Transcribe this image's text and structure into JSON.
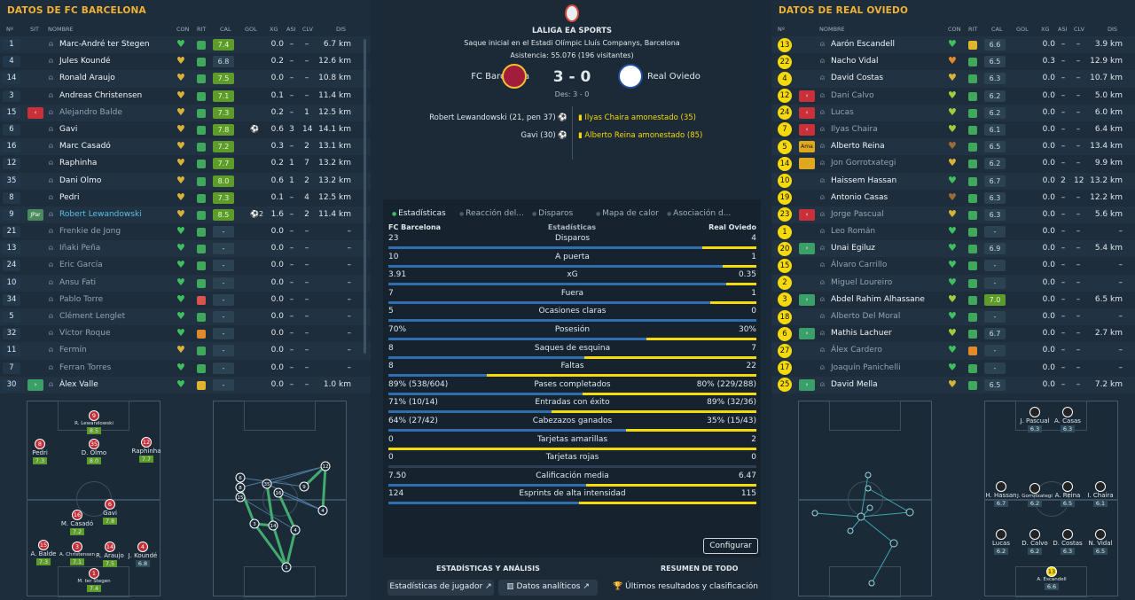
{
  "left": {
    "title": "DATOS DE FC BARCELONA",
    "headers": {
      "no": "Nº",
      "sit": "SIT",
      "name": "NOMBRE",
      "con": "CON",
      "rit": "RIT",
      "cal": "CAL",
      "gol": "GOL",
      "xg": "XG",
      "asi": "ASI",
      "clv": "CLV",
      "dis": "DIS"
    },
    "players": [
      {
        "n": "1",
        "sit": "",
        "name": "Marc-André ter Stegen",
        "con": "green",
        "rit": "#3fa85a",
        "cal": "7.4",
        "calg": true,
        "gol": "",
        "xg": "0.0",
        "asi": "–",
        "clv": "–",
        "dis": "6.7 km"
      },
      {
        "n": "4",
        "sit": "",
        "name": "Jules Koundé",
        "con": "gold",
        "rit": "#3fa85a",
        "cal": "6.8",
        "calg": false,
        "gol": "",
        "xg": "0.2",
        "asi": "–",
        "clv": "–",
        "dis": "12.6 km"
      },
      {
        "n": "14",
        "sit": "",
        "name": "Ronald Araujo",
        "con": "gold",
        "rit": "#3fa85a",
        "cal": "7.5",
        "calg": true,
        "gol": "",
        "xg": "0.0",
        "asi": "–",
        "clv": "–",
        "dis": "10.8 km"
      },
      {
        "n": "3",
        "sit": "",
        "name": "Andreas Christensen",
        "con": "gold",
        "rit": "#3fa85a",
        "cal": "7.1",
        "calg": true,
        "gol": "",
        "xg": "0.1",
        "asi": "–",
        "clv": "–",
        "dis": "11.4 km"
      },
      {
        "n": "15",
        "sit": "red",
        "sitt": "‹",
        "name": "Alejandro Balde",
        "con": "gold",
        "rit": "#3fa85a",
        "cal": "7.3",
        "calg": true,
        "gol": "",
        "xg": "0.2",
        "asi": "–",
        "clv": "1",
        "dis": "12.5 km",
        "muted": true
      },
      {
        "n": "6",
        "sit": "",
        "name": "Gavi",
        "con": "gold",
        "rit": "#3fa85a",
        "cal": "7.8",
        "calg": true,
        "gol": "⚽",
        "xg": "0.6",
        "asi": "3",
        "clv": "14",
        "dis": "14.1 km"
      },
      {
        "n": "16",
        "sit": "",
        "name": "Marc Casadó",
        "con": "gold",
        "rit": "#3fa85a",
        "cal": "7.2",
        "calg": true,
        "gol": "",
        "xg": "0.3",
        "asi": "–",
        "clv": "2",
        "dis": "13.1 km"
      },
      {
        "n": "12",
        "sit": "",
        "name": "Raphinha",
        "con": "gold",
        "rit": "#3fa85a",
        "cal": "7.7",
        "calg": true,
        "gol": "",
        "xg": "0.2",
        "asi": "1",
        "clv": "7",
        "dis": "13.2 km"
      },
      {
        "n": "35",
        "sit": "",
        "name": "Dani Olmo",
        "con": "gold",
        "rit": "#3fa85a",
        "cal": "8.0",
        "calg": true,
        "gol": "",
        "xg": "0.6",
        "asi": "1",
        "clv": "2",
        "dis": "13.2 km"
      },
      {
        "n": "8",
        "sit": "",
        "name": "Pedri",
        "con": "gold",
        "rit": "#3fa85a",
        "cal": "7.3",
        "calg": true,
        "gol": "",
        "xg": "0.1",
        "asi": "–",
        "clv": "4",
        "dis": "12.5 km"
      },
      {
        "n": "9",
        "sit": "jpar",
        "sitt": "JPar",
        "name": "Robert Lewandowski",
        "con": "gold",
        "rit": "#3fa85a",
        "cal": "8.5",
        "calg": true,
        "gol": "⚽2",
        "xg": "1.6",
        "asi": "–",
        "clv": "2",
        "dis": "11.4 km",
        "hl": true
      },
      {
        "n": "21",
        "sit": "",
        "name": "Frenkie de Jong",
        "con": "green",
        "rit": "#3fa85a",
        "cal": "-",
        "calg": false,
        "gol": "",
        "xg": "0.0",
        "asi": "–",
        "clv": "–",
        "dis": "–",
        "muted": true
      },
      {
        "n": "13",
        "sit": "",
        "name": "Iñaki Peña",
        "con": "green",
        "rit": "#3fa85a",
        "cal": "-",
        "calg": false,
        "gol": "",
        "xg": "0.0",
        "asi": "–",
        "clv": "–",
        "dis": "–",
        "muted": true
      },
      {
        "n": "24",
        "sit": "",
        "name": "Eric García",
        "con": "green",
        "rit": "#3fa85a",
        "cal": "-",
        "calg": false,
        "gol": "",
        "xg": "0.0",
        "asi": "–",
        "clv": "–",
        "dis": "–",
        "muted": true
      },
      {
        "n": "10",
        "sit": "",
        "name": "Ansu Fati",
        "con": "green",
        "rit": "#3fa85a",
        "cal": "-",
        "calg": false,
        "gol": "",
        "xg": "0.0",
        "asi": "–",
        "clv": "–",
        "dis": "–",
        "muted": true
      },
      {
        "n": "34",
        "sit": "",
        "name": "Pablo Torre",
        "con": "green",
        "rit": "#d9534f",
        "cal": "-",
        "calg": false,
        "gol": "",
        "xg": "0.0",
        "asi": "–",
        "clv": "–",
        "dis": "–",
        "muted": true
      },
      {
        "n": "5",
        "sit": "",
        "name": "Clément Lenglet",
        "con": "green",
        "rit": "#3fa85a",
        "cal": "-",
        "calg": false,
        "gol": "",
        "xg": "0.0",
        "asi": "–",
        "clv": "–",
        "dis": "–",
        "muted": true
      },
      {
        "n": "32",
        "sit": "",
        "name": "Víctor Roque",
        "con": "green",
        "rit": "#e08a2c",
        "cal": "-",
        "calg": false,
        "gol": "",
        "xg": "0.0",
        "asi": "–",
        "clv": "–",
        "dis": "–",
        "muted": true
      },
      {
        "n": "11",
        "sit": "",
        "name": "Fermín",
        "con": "gold",
        "rit": "#3fa85a",
        "cal": "-",
        "calg": false,
        "gol": "",
        "xg": "0.0",
        "asi": "–",
        "clv": "–",
        "dis": "–",
        "muted": true
      },
      {
        "n": "7",
        "sit": "",
        "name": "Ferran Torres",
        "con": "green",
        "rit": "#3fa85a",
        "cal": "-",
        "calg": false,
        "gol": "",
        "xg": "0.0",
        "asi": "–",
        "clv": "–",
        "dis": "–",
        "muted": true
      },
      {
        "n": "30",
        "sit": "green",
        "sitt": "›",
        "name": "Àlex Valle",
        "con": "green",
        "rit": "#e0b52d",
        "cal": "-",
        "calg": false,
        "gol": "",
        "xg": "0.0",
        "asi": "–",
        "clv": "–",
        "dis": "1.0 km"
      }
    ],
    "formation": [
      {
        "n": "9",
        "label": "R. Lewandowski",
        "rating": "8.5",
        "good": true
      },
      {
        "n": "8",
        "label": "Pedri",
        "rating": "7.3",
        "good": true
      },
      {
        "n": "35",
        "label": "D. Olmo",
        "rating": "8.0",
        "good": true
      },
      {
        "n": "12",
        "label": "Raphinha",
        "rating": "7.7",
        "good": true
      },
      {
        "n": "16",
        "label": "M. Casadó",
        "rating": "7.2",
        "good": true
      },
      {
        "n": "6",
        "label": "Gavi",
        "rating": "7.8",
        "good": true
      },
      {
        "n": "15",
        "label": "A. Balde",
        "rating": "7.3",
        "good": true
      },
      {
        "n": "3",
        "label": "A. Christensen",
        "rating": "7.1",
        "good": true
      },
      {
        "n": "14",
        "label": "R. Araujo",
        "rating": "7.5",
        "good": true
      },
      {
        "n": "4",
        "label": "J. Koundé",
        "rating": "6.8",
        "good": false
      },
      {
        "n": "1",
        "label": "M. ter Stegen",
        "rating": "7.4",
        "good": true
      }
    ]
  },
  "center": {
    "competition": "LALIGA EA SPORTS",
    "venue": "Saque inicial en el Estadi Olímpic Lluís Companys, Barcelona",
    "attendance": "Asistencia: 55.076 (196 visitantes)",
    "home": "FC Barcelona",
    "away": "Real Oviedo",
    "score": "3 - 0",
    "halftime": "Des: 3 - 0",
    "home_events": [
      "Robert Lewandowski (21, pen 37)",
      "Gavi (30)"
    ],
    "away_events": [
      "Ilyas Chaira amonestado (35)",
      "Alberto Reina amonestado (85)"
    ],
    "tabs": [
      "Estadísticas",
      "Reacción del...",
      "Disparos",
      "Mapa de calor",
      "Asociación d..."
    ],
    "stats_header": {
      "home": "FC Barcelona",
      "mid": "Estadísticas",
      "away": "Real Oviedo"
    },
    "configure": "Configurar",
    "footer_left": "ESTADÍSTICAS Y ANÁLISIS",
    "footer_right": "RESUMEN DE TODO",
    "buttons": [
      "Estadísticas de jugador",
      "Datos analíticos",
      "Últimos resultados y clasificación"
    ],
    "colors": {
      "home": "#2f6fb0",
      "away": "#f5d90a",
      "accent": "#f2b233"
    }
  },
  "chart_data": {
    "type": "table",
    "rows": [
      {
        "label": "Disparos",
        "home": "23",
        "away": "4",
        "h": 23,
        "a": 4
      },
      {
        "label": "A puerta",
        "home": "10",
        "away": "1",
        "h": 10,
        "a": 1
      },
      {
        "label": "xG",
        "home": "3.91",
        "away": "0.35",
        "h": 3.91,
        "a": 0.35
      },
      {
        "label": "Fuera",
        "home": "7",
        "away": "1",
        "h": 7,
        "a": 1
      },
      {
        "label": "Ocasiones claras",
        "home": "5",
        "away": "0",
        "h": 5,
        "a": 0
      },
      {
        "label": "Posesión",
        "home": "70%",
        "away": "30%",
        "h": 70,
        "a": 30
      },
      {
        "label": "Saques de esquina",
        "home": "8",
        "away": "7",
        "h": 8,
        "a": 7
      },
      {
        "label": "Faltas",
        "home": "8",
        "away": "22",
        "h": 8,
        "a": 22
      },
      {
        "label": "Pases completados",
        "home": "89% (538/604)",
        "away": "80% (229/288)",
        "h": 89,
        "a": 80
      },
      {
        "label": "Entradas con éxito",
        "home": "71% (10/14)",
        "away": "89% (32/36)",
        "h": 71,
        "a": 89
      },
      {
        "label": "Cabezazos ganados",
        "home": "64% (27/42)",
        "away": "35% (15/43)",
        "h": 64,
        "a": 35
      },
      {
        "label": "Tarjetas amarillas",
        "home": "0",
        "away": "2",
        "h": 0,
        "a": 2
      },
      {
        "label": "Tarjetas rojas",
        "home": "0",
        "away": "0",
        "h": 0,
        "a": 0
      },
      {
        "label": "Calificación media",
        "home": "7.50",
        "away": "6.47",
        "h": 7.5,
        "a": 6.47
      },
      {
        "label": "Esprints de alta intensidad",
        "home": "124",
        "away": "115",
        "h": 124,
        "a": 115
      }
    ]
  },
  "right": {
    "title": "DATOS DE REAL OVIEDO",
    "players": [
      {
        "n": "13",
        "sit": "",
        "name": "Aarón Escandell",
        "con": "green",
        "rit": "#e0b52d",
        "cal": "6.6",
        "gol": "",
        "xg": "0.0",
        "asi": "–",
        "clv": "–",
        "dis": "3.9 km"
      },
      {
        "n": "22",
        "sit": "",
        "name": "Nacho Vidal",
        "con": "orange",
        "rit": "#3fa85a",
        "cal": "6.5",
        "gol": "",
        "xg": "0.3",
        "asi": "–",
        "clv": "–",
        "dis": "12.9 km"
      },
      {
        "n": "4",
        "sit": "",
        "name": "David Costas",
        "con": "gold",
        "rit": "#3fa85a",
        "cal": "6.3",
        "gol": "",
        "xg": "0.0",
        "asi": "–",
        "clv": "–",
        "dis": "10.7 km"
      },
      {
        "n": "12",
        "sit": "red",
        "sitt": "‹",
        "name": "Dani Calvo",
        "con": "lime",
        "rit": "#3fa85a",
        "cal": "6.2",
        "gol": "",
        "xg": "0.0",
        "asi": "–",
        "clv": "–",
        "dis": "5.0 km",
        "muted": true
      },
      {
        "n": "24",
        "sit": "red",
        "sitt": "‹",
        "name": "Lucas",
        "con": "lime",
        "rit": "#3fa85a",
        "cal": "6.2",
        "gol": "",
        "xg": "0.0",
        "asi": "–",
        "clv": "–",
        "dis": "6.0 km",
        "muted": true
      },
      {
        "n": "7",
        "sit": "red",
        "sitt": "‹",
        "name": "Ilyas Chaira",
        "con": "lime",
        "rit": "#3fa85a",
        "cal": "6.1",
        "gol": "",
        "xg": "0.0",
        "asi": "–",
        "clv": "–",
        "dis": "6.4 km",
        "muted": true
      },
      {
        "n": "5",
        "sit": "amber",
        "sitt": "Ama",
        "name": "Alberto Reina",
        "con": "brown",
        "rit": "#3fa85a",
        "cal": "6.5",
        "gol": "",
        "xg": "0.0",
        "asi": "–",
        "clv": "–",
        "dis": "13.4 km"
      },
      {
        "n": "14",
        "sit": "amber",
        "sitt": "",
        "name": "Jon Gorrotxategi",
        "con": "gold",
        "rit": "#3fa85a",
        "cal": "6.2",
        "gol": "",
        "xg": "0.0",
        "asi": "–",
        "clv": "–",
        "dis": "9.9 km",
        "muted": true
      },
      {
        "n": "10",
        "sit": "",
        "name": "Haissem Hassan",
        "con": "green",
        "rit": "#3fa85a",
        "cal": "6.7",
        "gol": "",
        "xg": "0.0",
        "asi": "2",
        "clv": "12",
        "dis": "13.2 km"
      },
      {
        "n": "19",
        "sit": "",
        "name": "Antonio Casas",
        "con": "brown",
        "rit": "#3fa85a",
        "cal": "6.3",
        "gol": "",
        "xg": "0.0",
        "asi": "–",
        "clv": "–",
        "dis": "12.2 km"
      },
      {
        "n": "23",
        "sit": "red",
        "sitt": "‹",
        "name": "Jorge Pascual",
        "con": "gold",
        "rit": "#3fa85a",
        "cal": "6.3",
        "gol": "",
        "xg": "0.0",
        "asi": "–",
        "clv": "–",
        "dis": "5.6 km",
        "muted": true
      },
      {
        "n": "1",
        "sit": "",
        "name": "Leo Román",
        "con": "green",
        "rit": "#3fa85a",
        "cal": "-",
        "gol": "",
        "xg": "0.0",
        "asi": "–",
        "clv": "–",
        "dis": "–",
        "muted": true
      },
      {
        "n": "20",
        "sit": "green",
        "sitt": "›",
        "name": "Unai Egiluz",
        "con": "green",
        "rit": "#3fa85a",
        "cal": "6.9",
        "gol": "",
        "xg": "0.0",
        "asi": "–",
        "clv": "–",
        "dis": "5.4 km"
      },
      {
        "n": "15",
        "sit": "",
        "name": "Álvaro Carrillo",
        "con": "green",
        "rit": "#3fa85a",
        "cal": "-",
        "gol": "",
        "xg": "0.0",
        "asi": "–",
        "clv": "–",
        "dis": "–",
        "muted": true
      },
      {
        "n": "2",
        "sit": "",
        "name": "Miguel Loureiro",
        "con": "green",
        "rit": "#3fa85a",
        "cal": "-",
        "gol": "",
        "xg": "0.0",
        "asi": "–",
        "clv": "–",
        "dis": "–",
        "muted": true
      },
      {
        "n": "3",
        "sit": "green",
        "sitt": "›",
        "name": "Abdel Rahim Alhassane",
        "con": "lime",
        "rit": "#3fa85a",
        "cal": "7.0",
        "calg": true,
        "gol": "",
        "xg": "0.0",
        "asi": "–",
        "clv": "–",
        "dis": "6.5 km"
      },
      {
        "n": "18",
        "sit": "",
        "name": "Alberto Del Moral",
        "con": "green",
        "rit": "#3fa85a",
        "cal": "-",
        "gol": "",
        "xg": "0.0",
        "asi": "–",
        "clv": "–",
        "dis": "–",
        "muted": true
      },
      {
        "n": "6",
        "sit": "green",
        "sitt": "›",
        "name": "Mathis Lachuer",
        "con": "lime",
        "rit": "#3fa85a",
        "cal": "6.7",
        "gol": "",
        "xg": "0.0",
        "asi": "–",
        "clv": "–",
        "dis": "2.7 km"
      },
      {
        "n": "27",
        "sit": "",
        "name": "Álex Cardero",
        "con": "green",
        "rit": "#e08a2c",
        "cal": "-",
        "gol": "",
        "xg": "0.0",
        "asi": "–",
        "clv": "–",
        "dis": "–",
        "muted": true
      },
      {
        "n": "17",
        "sit": "",
        "name": "Joaquín Panichelli",
        "con": "green",
        "rit": "#3fa85a",
        "cal": "-",
        "gol": "",
        "xg": "0.0",
        "asi": "–",
        "clv": "–",
        "dis": "–",
        "muted": true
      },
      {
        "n": "25",
        "sit": "green",
        "sitt": "›",
        "name": "David Mella",
        "con": "gold",
        "rit": "#3fa85a",
        "cal": "6.5",
        "gol": "",
        "xg": "0.0",
        "asi": "–",
        "clv": "–",
        "dis": "7.2 km"
      }
    ],
    "formation": [
      {
        "n": "",
        "label": "J. Pascual",
        "rating": "6.3"
      },
      {
        "n": "",
        "label": "A. Casas",
        "rating": "6.3"
      },
      {
        "n": "",
        "label": "H. Hassan",
        "rating": "6.7"
      },
      {
        "n": "",
        "label": "J. Gorrotxategi",
        "rating": "6.2"
      },
      {
        "n": "",
        "label": "A. Reina",
        "rating": "6.5"
      },
      {
        "n": "",
        "label": "I. Chaira",
        "rating": "6.1"
      },
      {
        "n": "",
        "label": "Lucas",
        "rating": "6.2"
      },
      {
        "n": "",
        "label": "D. Calvo",
        "rating": "6.2"
      },
      {
        "n": "",
        "label": "D. Costas",
        "rating": "6.3"
      },
      {
        "n": "",
        "label": "N. Vidal",
        "rating": "6.5"
      },
      {
        "n": "13",
        "label": "A. Escandell",
        "rating": "6.6"
      }
    ]
  }
}
